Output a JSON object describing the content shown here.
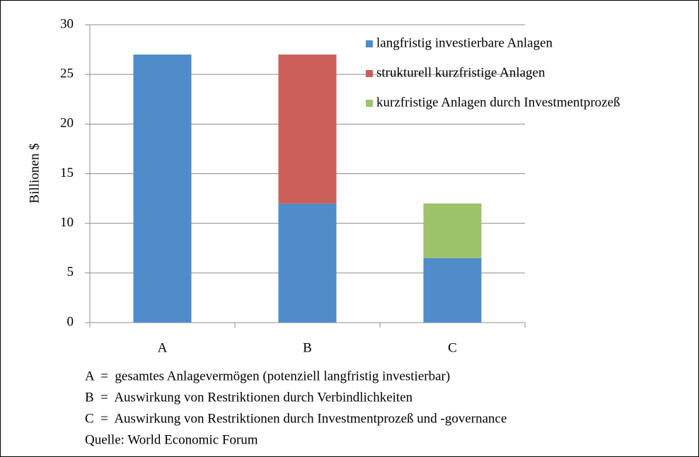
{
  "chart_data": {
    "type": "stacked_bar",
    "y_label": "Billionen $",
    "categories": [
      "A",
      "B",
      "C"
    ],
    "series": [
      {
        "name": "langfristig investierbare Anlagen",
        "color": "#4f8cc9",
        "values": [
          27,
          12,
          6.5
        ]
      },
      {
        "name": "strukturell kurzfristige Anlagen",
        "color": "#cd5f5a",
        "values": [
          null,
          15,
          null
        ]
      },
      {
        "name": "kurzfristige Anlagen durch Investmentprozeß",
        "color": "#9dc36b",
        "values": [
          null,
          null,
          5.5
        ]
      }
    ],
    "ylim": [
      0,
      30
    ],
    "yticks": [
      0,
      5,
      10,
      15,
      20,
      25,
      30
    ],
    "grid": true,
    "legend": "upper right",
    "notes": [
      "A  =  gesamtes Anlagevermögen (potenziell langfristig investierbar)",
      "B  =  Auswirkung von Restriktionen durch Verbindlichkeiten",
      "C  =  Auswirkung von Restriktionen durch Investmentprozeß und -governance",
      "Quelle: World Economic Forum"
    ]
  }
}
